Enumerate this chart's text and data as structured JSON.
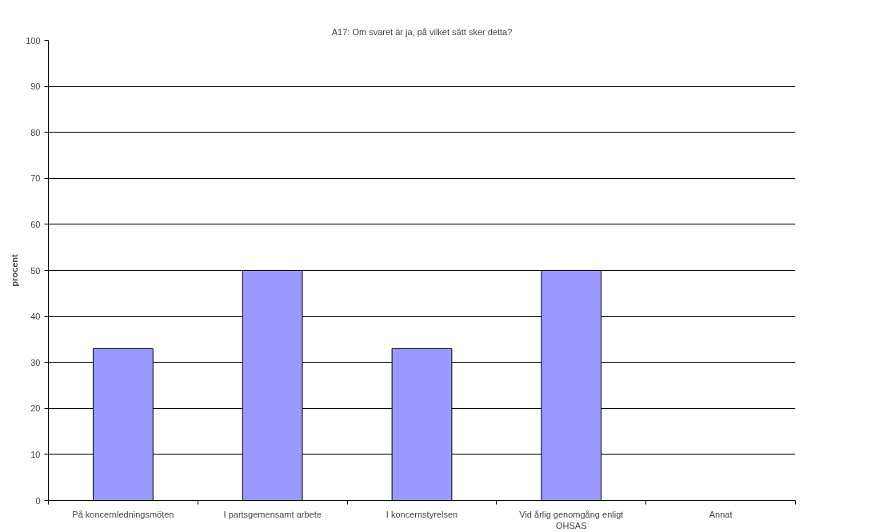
{
  "chart_data": {
    "type": "bar",
    "title": "A17: Om svaret är ja, på vilket sätt sker detta?",
    "ylabel": "procent",
    "categories": [
      "På koncernledningsmöten",
      "I partsgemensamt arbete",
      "I koncernstyrelsen",
      "Vid årlig genomgång enligt OHSAS",
      "Annat"
    ],
    "values": [
      33,
      50,
      33,
      50,
      0
    ],
    "color": "#9999ff",
    "ylim": [
      0,
      100
    ],
    "yticks": [
      0,
      10,
      20,
      30,
      40,
      50,
      60,
      70,
      80,
      90,
      100
    ],
    "grid": "y"
  }
}
